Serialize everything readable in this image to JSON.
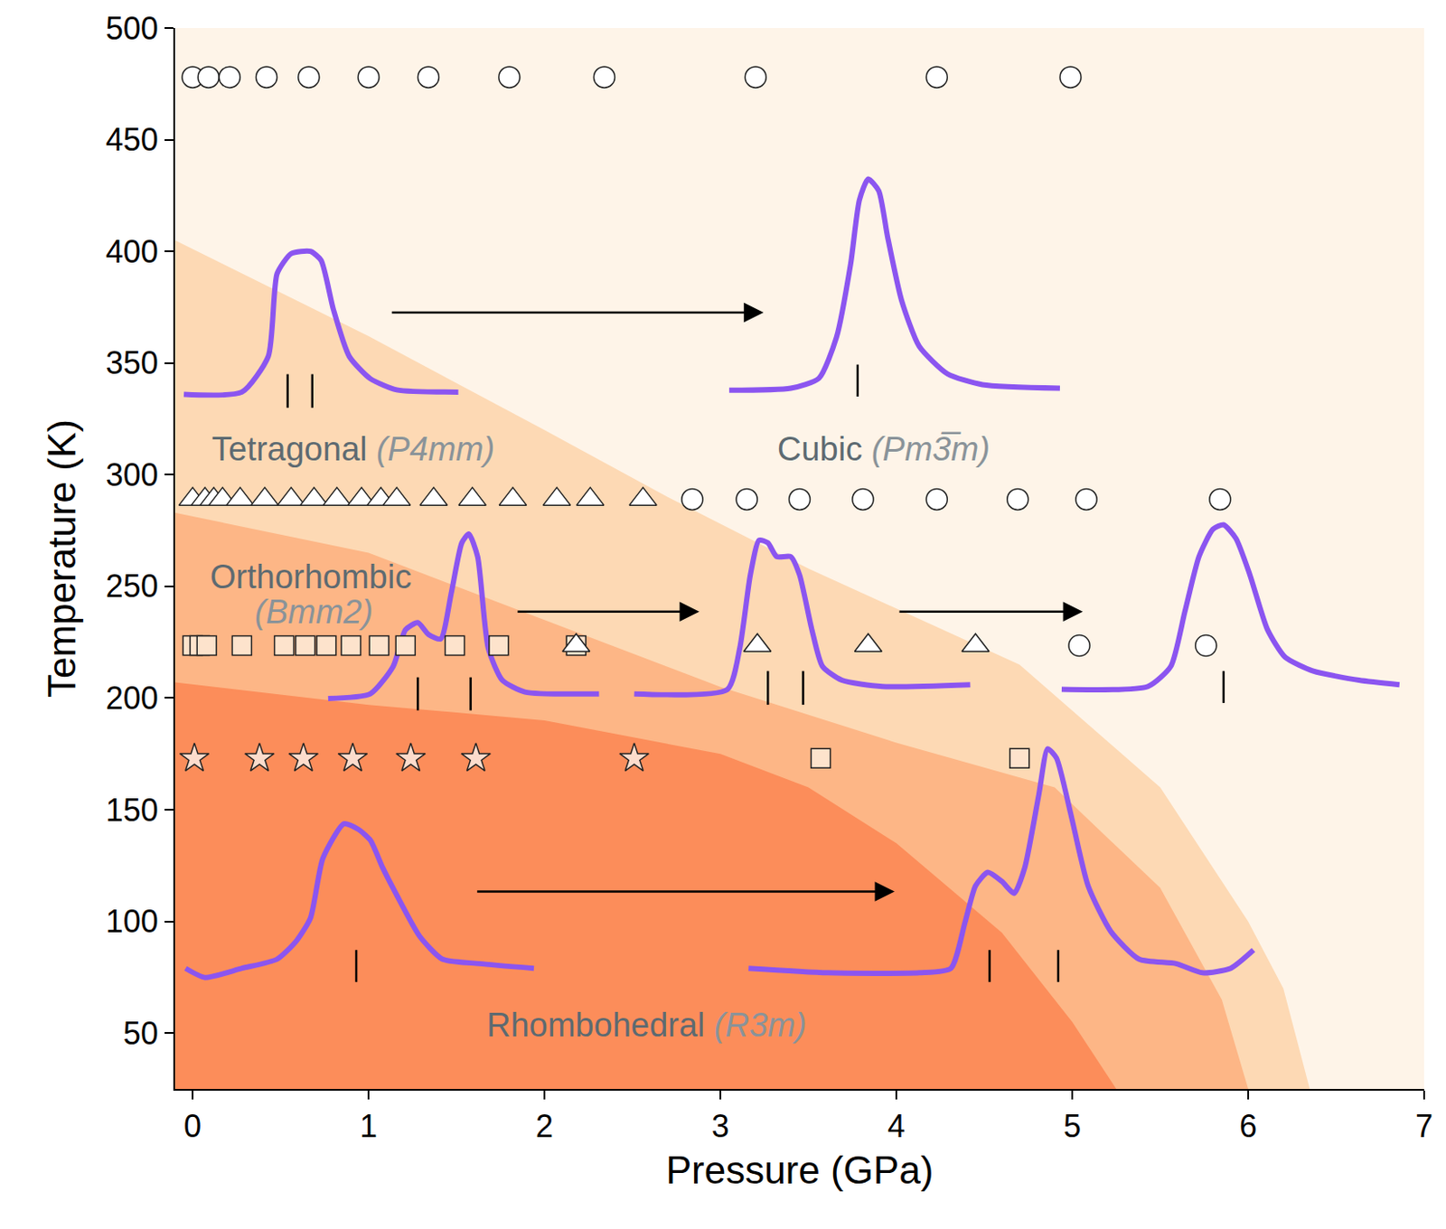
{
  "chart_data": {
    "type": "scatter",
    "x_label": "Pressure (GPa)",
    "y_label": "Temperature (K)",
    "xlim": [
      -0.1,
      7
    ],
    "ylim": [
      25,
      500
    ],
    "xticks": [
      0,
      1,
      2,
      3,
      4,
      5,
      6,
      7
    ],
    "yticks": [
      50,
      100,
      150,
      200,
      250,
      300,
      350,
      400,
      450,
      500
    ],
    "grid": false,
    "regions": [
      {
        "name": "Cubic",
        "space_group": "Pm3̅m",
        "color": "#fef4e8",
        "label": {
          "x": 3.93,
          "y": 311.6
        }
      },
      {
        "name": "Tetragonal",
        "space_group": "P4mm",
        "color": "#fdd9b4",
        "boundary": {
          "x": [
            -0.1,
            1,
            2,
            2.7,
            3.5,
            4.7,
            5.5,
            6.0,
            6.2,
            6.35
          ],
          "y": [
            405,
            362,
            320,
            290,
            258,
            215,
            160,
            100,
            70,
            25
          ]
        },
        "label": {
          "x": 0.91,
          "y": 311.6
        }
      },
      {
        "name": "Orthorhombic",
        "space_group": "Bmm2",
        "color": "#fdb686",
        "boundary": {
          "x": [
            -0.1,
            1,
            2,
            3,
            4,
            4.9,
            5.5,
            5.85,
            6.0
          ],
          "y": [
            283,
            265,
            235,
            205,
            180,
            160,
            115,
            65,
            25
          ]
        },
        "label": {
          "x": 0.67,
          "y": 254.3
        },
        "space_group_at": {
          "x": 0.69,
          "y": 238.7
        }
      },
      {
        "name": "Rhombohedral",
        "space_group": "R3m",
        "color": "#fc8d5a",
        "boundary": {
          "x": [
            -0.1,
            1,
            2,
            3,
            3.5,
            4,
            4.6,
            5.0,
            5.25
          ],
          "y": [
            207,
            197,
            190,
            175,
            160,
            135,
            95,
            55,
            25
          ]
        },
        "label": {
          "x": 2.58,
          "y": 53.6
        }
      }
    ],
    "series": [
      {
        "marker": "circle",
        "color": "#ffffff",
        "x": [
          0,
          0.09,
          0.21,
          0.42,
          0.66,
          1.0,
          1.34,
          1.8,
          2.34,
          3.2,
          4.23,
          4.99
        ],
        "values": [
          478,
          478,
          478,
          478,
          478,
          478,
          478,
          478,
          478,
          478,
          478,
          478
        ]
      },
      {
        "marker": "triangle",
        "color": "#ffffff",
        "x": [
          0,
          0.07,
          0.12,
          0.17,
          0.27,
          0.41,
          0.56,
          0.69,
          0.82,
          0.96,
          1.07,
          1.16,
          1.37,
          1.59,
          1.82,
          2.07,
          2.26,
          2.56
        ],
        "values": [
          289,
          289,
          289,
          289,
          289,
          289,
          289,
          289,
          289,
          289,
          289,
          289,
          289,
          289,
          289,
          289,
          289,
          289
        ]
      },
      {
        "marker": "circle",
        "color": "#ffffff",
        "x": [
          2.84,
          3.15,
          3.45,
          3.81,
          4.23,
          4.69,
          5.08,
          5.84
        ],
        "values": [
          289,
          289,
          289,
          289,
          289,
          289,
          289,
          289
        ]
      },
      {
        "marker": "square",
        "color": "#fde3cc",
        "x": [
          0,
          0.04,
          0.08,
          0.28,
          0.52,
          0.64,
          0.76,
          0.9,
          1.06,
          1.21,
          1.49,
          1.74,
          2.18
        ],
        "values": [
          223.5,
          223.5,
          223.5,
          223.5,
          223.5,
          223.5,
          223.5,
          223.5,
          223.5,
          223.5,
          223.5,
          223.5,
          223.5
        ]
      },
      {
        "marker": "triangle",
        "color": "#ffffff",
        "x": [
          2.18,
          3.21,
          3.84,
          4.45
        ],
        "values": [
          223.5,
          223.5,
          223.5,
          223.5
        ]
      },
      {
        "marker": "circle",
        "color": "#ffffff",
        "x": [
          5.04,
          5.76
        ],
        "values": [
          223.5,
          223.5
        ]
      },
      {
        "marker": "star",
        "color": "#fcdccc",
        "x": [
          0.01,
          0.38,
          0.63,
          0.91,
          1.24,
          1.61,
          2.51
        ],
        "values": [
          173,
          173,
          173,
          173,
          173,
          173,
          173
        ]
      },
      {
        "marker": "square",
        "color": "#fde3cc",
        "x": [
          3.57,
          4.7
        ],
        "values": [
          173,
          173
        ]
      }
    ],
    "spectra": [
      {
        "color": "#8b55f0",
        "x": [
          -0.05,
          0.28,
          0.43,
          0.48,
          0.56,
          0.67,
          0.73,
          0.8,
          0.89,
          1.01,
          1.16,
          1.51
        ],
        "values": [
          336,
          337,
          353,
          390,
          399,
          400,
          396,
          374,
          353,
          343,
          338,
          337
        ],
        "peaks": [
          {
            "x": 0.54,
            "y": [
              330,
              345
            ]
          },
          {
            "x": 0.68,
            "y": [
              330,
              345
            ]
          }
        ]
      },
      {
        "color": "#8b55f0",
        "x": [
          3.05,
          3.4,
          3.56,
          3.66,
          3.74,
          3.79,
          3.84,
          3.9,
          3.95,
          4.03,
          4.13,
          4.29,
          4.49,
          4.93
        ],
        "values": [
          337.8,
          338.7,
          343.2,
          361.6,
          394.3,
          423,
          432.4,
          427.1,
          406.6,
          378,
          357.5,
          345.2,
          340.3,
          338.7
        ],
        "peaks": [
          {
            "x": 3.78,
            "y": [
              335,
              349.3
            ]
          }
        ]
      },
      {
        "color": "#8b55f0",
        "x": [
          0.77,
          1.01,
          1.14,
          1.21,
          1.28,
          1.34,
          1.41,
          1.47,
          1.53,
          1.57,
          1.62,
          1.68,
          1.76,
          1.89,
          2.31
        ],
        "values": [
          199.8,
          201.9,
          214.2,
          230.6,
          233.8,
          228.5,
          226.5,
          247,
          269.5,
          273.5,
          263.3,
          222.4,
          208,
          202.7,
          201.9
        ],
        "peaks": [
          {
            "x": 1.28,
            "y": [
              194.5,
              209.3
            ]
          },
          {
            "x": 1.58,
            "y": [
              194.5,
              209.3
            ]
          }
        ]
      },
      {
        "color": "#8b55f0",
        "x": [
          2.51,
          3.04,
          3.11,
          3.17,
          3.22,
          3.27,
          3.32,
          3.4,
          3.45,
          3.52,
          3.58,
          3.69,
          3.92,
          4.42
        ],
        "values": [
          201.9,
          203.9,
          222.4,
          255.1,
          270.7,
          269.5,
          263.3,
          263.3,
          255.1,
          230.6,
          214.2,
          208,
          205.2,
          206
        ],
        "peaks": [
          {
            "x": 3.27,
            "y": [
              197,
              212.1
            ]
          },
          {
            "x": 3.47,
            "y": [
              197,
              212.1
            ]
          }
        ]
      },
      {
        "color": "#8b55f0",
        "x": [
          4.94,
          5.43,
          5.56,
          5.64,
          5.72,
          5.8,
          5.86,
          5.93,
          6.01,
          6.11,
          6.21,
          6.37,
          6.63,
          6.86
        ],
        "values": [
          203.9,
          205.2,
          214.2,
          238.7,
          263.3,
          275.6,
          277.6,
          271.5,
          255.1,
          230.6,
          218.3,
          212.1,
          208,
          206
        ],
        "peaks": [
          {
            "x": 5.86,
            "y": [
              197.8,
              212.1
            ]
          }
        ]
      },
      {
        "color": "#8b55f0",
        "x": [
          -0.04,
          0.07,
          0.28,
          0.48,
          0.59,
          0.67,
          0.74,
          0.86,
          0.94,
          1.01,
          1.08,
          1.16,
          1.29,
          1.42,
          1.63,
          1.94
        ],
        "values": [
          79,
          74.9,
          79,
          83.1,
          91.3,
          101.6,
          128.2,
          143.7,
          141.3,
          136.4,
          124.1,
          111.8,
          93.4,
          83.1,
          81.1,
          79
        ],
        "peaks": [
          {
            "x": 0.93,
            "y": [
              72.9,
              87.2
            ]
          }
        ]
      },
      {
        "color": "#8b55f0",
        "x": [
          3.16,
          3.61,
          4.13,
          4.31,
          4.39,
          4.45,
          4.52,
          4.6,
          4.67,
          4.73,
          4.81,
          4.86,
          4.91,
          4.99,
          5.09,
          5.22,
          5.38,
          5.59,
          5.74,
          5.9,
          6.03
        ],
        "values": [
          79,
          77,
          77,
          79,
          99.5,
          115.9,
          122,
          117.9,
          112.6,
          124.1,
          156.8,
          177.3,
          173.2,
          148.6,
          115.9,
          95.4,
          83.1,
          81.1,
          77,
          79,
          87.2
        ],
        "peaks": [
          {
            "x": 4.53,
            "y": [
              72.9,
              87.2
            ]
          },
          {
            "x": 4.92,
            "y": [
              72.9,
              87.2
            ]
          }
        ]
      }
    ],
    "arrows": [
      {
        "x": [
          1.125,
          3.245
        ],
        "y": [
          372.6,
          372.6
        ]
      },
      {
        "x": [
          1.84,
          2.88
        ],
        "y": [
          238.7,
          238.7
        ]
      },
      {
        "x": [
          4.01,
          5.06
        ],
        "y": [
          238.7,
          238.7
        ]
      },
      {
        "x": [
          1.61,
          3.99
        ],
        "y": [
          113.4,
          113.4
        ]
      }
    ]
  }
}
